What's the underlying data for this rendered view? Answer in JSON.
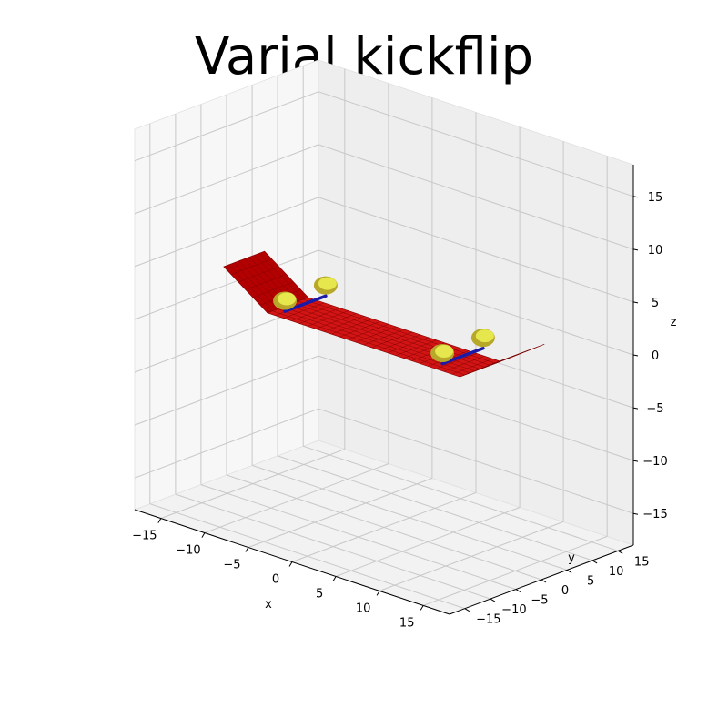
{
  "chart_data": {
    "type": "surface3d",
    "title": "Varial kickflip",
    "xlabel": "x",
    "ylabel": "y",
    "zlabel": "z",
    "xlim": [
      -18,
      18
    ],
    "ylim": [
      -18,
      18
    ],
    "zlim": [
      -18,
      18
    ],
    "x_ticks": [
      -15,
      -10,
      -5,
      0,
      5,
      10,
      15
    ],
    "y_ticks": [
      -15,
      -10,
      -5,
      0,
      5,
      10,
      15
    ],
    "z_ticks": [
      -15,
      -10,
      -5,
      0,
      5,
      10,
      15
    ],
    "tick_labels": {
      "x": [
        "−15",
        "−10",
        "−5",
        "0",
        "5",
        "10",
        "15"
      ],
      "y": [
        "−15",
        "−10",
        "−5",
        "0",
        "5",
        "10",
        "15"
      ],
      "z": [
        "−15",
        "−10",
        "−5",
        "0",
        "5",
        "10",
        "15"
      ]
    },
    "grid": true,
    "objects": {
      "deck": {
        "name": "skateboard deck",
        "color": "#cc0000",
        "edge_color": "#800000",
        "profile_x": [
          -16,
          -11,
          11,
          16
        ],
        "profile_z": [
          3,
          0,
          0,
          3
        ],
        "width_y": [
          -4,
          4
        ]
      },
      "wheels": {
        "name": "wheels",
        "color": "#e6e64d",
        "shade": "#b8a82a",
        "centers": [
          [
            -9,
            -4,
            -1.5
          ],
          [
            -9,
            4,
            -1.5
          ],
          [
            9,
            -4,
            -1.5
          ],
          [
            9,
            4,
            -1.5
          ]
        ],
        "radius": 1.5
      },
      "axles": {
        "name": "axles",
        "color": "#1a1aa6",
        "segments": [
          [
            [
              -9,
              -4,
              -1.5
            ],
            [
              -9,
              4,
              -1.5
            ]
          ],
          [
            [
              9,
              -4,
              -1.5
            ],
            [
              9,
              4,
              -1.5
            ]
          ]
        ]
      }
    }
  }
}
